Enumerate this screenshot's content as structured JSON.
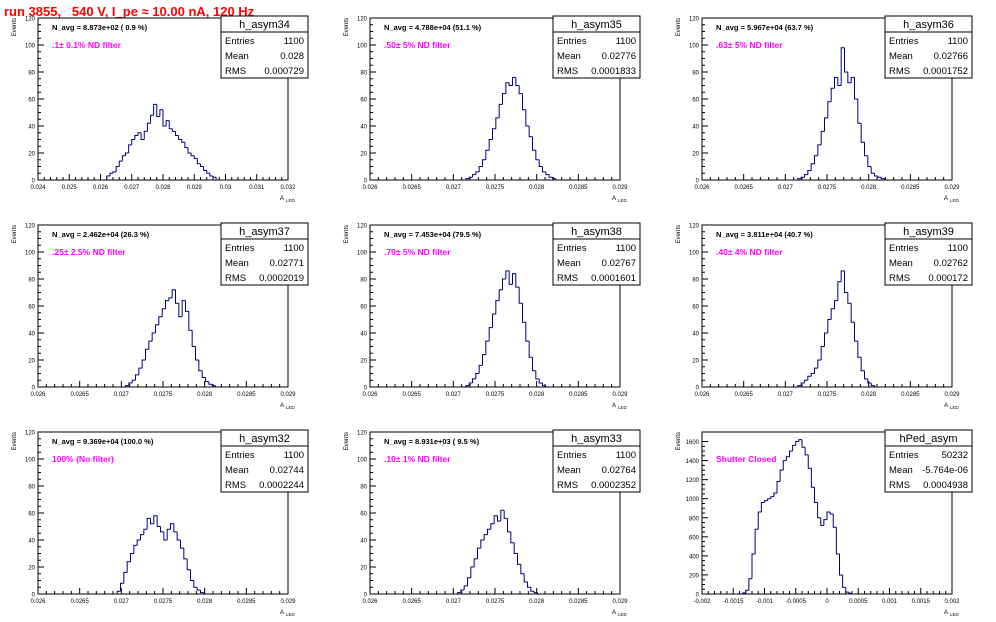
{
  "header": {
    "title": "run 3855,   540 V, I_pe ≈ 10.00 nA, 120 Hz"
  },
  "style": {
    "line_color": "#000080",
    "annotation_color": "#ff00ff",
    "title_color": "#ff0000"
  },
  "chart_data": [
    {
      "type": "bar",
      "histogram": "h_asym34",
      "title": "h_asym34",
      "navg": "N_avg = 8.873e+02 ( 0.9 %)",
      "filter_label": ".1± 0.1% ND filter",
      "stats": {
        "entries": "1100",
        "mean": "0.028",
        "rms": "0.000729"
      },
      "xlabel": "A",
      "xlabel_sub": "LED",
      "ylabel": "Events",
      "xlim": [
        0.024,
        0.032
      ],
      "ylim": [
        0,
        120
      ],
      "xticks": [
        0.024,
        0.025,
        0.026,
        0.027,
        0.028,
        0.029,
        0.03,
        0.031,
        0.032
      ],
      "xtick_labels": [
        "0.024",
        "0.025",
        "0.026",
        "0.027",
        "0.028",
        "0.029",
        "0.03",
        "0.031",
        "0.032"
      ],
      "yticks": [
        0,
        20,
        40,
        60,
        80,
        100,
        120
      ],
      "ytick_labels": [
        "0",
        "20",
        "40",
        "60",
        "80",
        "100",
        "120"
      ],
      "bin_start": 0.0262,
      "bin_width": 0.0001,
      "values": [
        3,
        5,
        6,
        10,
        14,
        18,
        20,
        26,
        30,
        33,
        35,
        30,
        36,
        42,
        48,
        56,
        47,
        52,
        40,
        44,
        38,
        36,
        33,
        30,
        28,
        24,
        20,
        18,
        16,
        12,
        10,
        7,
        5,
        3,
        2
      ]
    },
    {
      "type": "bar",
      "histogram": "h_asym35",
      "title": "h_asym35",
      "navg": "N_avg = 4.788e+04 (51.1 %)",
      "filter_label": ".50± 5% ND filter",
      "stats": {
        "entries": "1100",
        "mean": "0.02776",
        "rms": "0.0001833"
      },
      "xlabel": "A",
      "xlabel_sub": "LED",
      "ylabel": "Events",
      "xlim": [
        0.026,
        0.029
      ],
      "ylim": [
        0,
        120
      ],
      "xticks": [
        0.026,
        0.0265,
        0.027,
        0.0275,
        0.028,
        0.0285,
        0.029
      ],
      "xtick_labels": [
        "0.026",
        "0.0265",
        "0.027",
        "0.0275",
        "0.028",
        "0.0285",
        "0.029"
      ],
      "yticks": [
        0,
        20,
        40,
        60,
        80,
        100,
        120
      ],
      "ytick_labels": [
        "0",
        "20",
        "40",
        "60",
        "80",
        "100",
        "120"
      ],
      "bin_start": 0.02715,
      "bin_width": 4e-05,
      "values": [
        1,
        2,
        4,
        6,
        10,
        15,
        22,
        30,
        38,
        46,
        56,
        64,
        72,
        70,
        76,
        70,
        64,
        52,
        40,
        32,
        22,
        15,
        10,
        6,
        4,
        2,
        1
      ]
    },
    {
      "type": "bar",
      "histogram": "h_asym36",
      "title": "h_asym36",
      "navg": "N_avg = 5.967e+04 (63.7 %)",
      "filter_label": ".63± 5% ND filter",
      "stats": {
        "entries": "1100",
        "mean": "0.02766",
        "rms": "0.0001752"
      },
      "xlabel": "A",
      "xlabel_sub": "LED",
      "ylabel": "Events",
      "xlim": [
        0.026,
        0.029
      ],
      "ylim": [
        0,
        120
      ],
      "xticks": [
        0.026,
        0.0265,
        0.027,
        0.0275,
        0.028,
        0.0285,
        0.029
      ],
      "xtick_labels": [
        "0.026",
        "0.0265",
        "0.027",
        "0.0275",
        "0.028",
        "0.0285",
        "0.029"
      ],
      "yticks": [
        0,
        20,
        40,
        60,
        80,
        100,
        120
      ],
      "ytick_labels": [
        "0",
        "20",
        "40",
        "60",
        "80",
        "100",
        "120"
      ],
      "bin_start": 0.02715,
      "bin_width": 4e-05,
      "values": [
        1,
        2,
        4,
        7,
        12,
        18,
        26,
        36,
        46,
        58,
        68,
        76,
        70,
        98,
        80,
        72,
        76,
        60,
        42,
        28,
        18,
        10,
        5,
        3,
        2,
        1
      ]
    },
    {
      "type": "bar",
      "histogram": "h_asym37",
      "title": "h_asym37",
      "navg": "N_avg = 2.462e+04 (26.3 %)",
      "filter_label": ".25± 2.5% ND filter",
      "stats": {
        "entries": "1100",
        "mean": "0.02771",
        "rms": "0.0002019"
      },
      "xlabel": "A",
      "xlabel_sub": "LED",
      "ylabel": "Events",
      "xlim": [
        0.026,
        0.029
      ],
      "ylim": [
        0,
        120
      ],
      "xticks": [
        0.026,
        0.0265,
        0.027,
        0.0275,
        0.028,
        0.0285,
        0.029
      ],
      "xtick_labels": [
        "0.026",
        "0.0265",
        "0.027",
        "0.0275",
        "0.028",
        "0.0285",
        "0.029"
      ],
      "yticks": [
        0,
        20,
        40,
        60,
        80,
        100,
        120
      ],
      "ytick_labels": [
        "0",
        "20",
        "40",
        "60",
        "80",
        "100",
        "120"
      ],
      "bin_start": 0.02705,
      "bin_width": 4e-05,
      "values": [
        1,
        3,
        5,
        9,
        14,
        20,
        28,
        34,
        40,
        46,
        52,
        58,
        64,
        66,
        72,
        62,
        52,
        64,
        56,
        42,
        30,
        20,
        12,
        7,
        4,
        2,
        1
      ]
    },
    {
      "type": "bar",
      "histogram": "h_asym38",
      "title": "h_asym38",
      "navg": "N_avg = 7.453e+04 (79.5 %)",
      "filter_label": ".79± 5% ND filter",
      "stats": {
        "entries": "1100",
        "mean": "0.02767",
        "rms": "0.0001601"
      },
      "xlabel": "A",
      "xlabel_sub": "LED",
      "ylabel": "Events",
      "xlim": [
        0.026,
        0.029
      ],
      "ylim": [
        0,
        120
      ],
      "xticks": [
        0.026,
        0.0265,
        0.027,
        0.0275,
        0.028,
        0.0285,
        0.029
      ],
      "xtick_labels": [
        "0.026",
        "0.0265",
        "0.027",
        "0.0275",
        "0.028",
        "0.0285",
        "0.029"
      ],
      "yticks": [
        0,
        20,
        40,
        60,
        80,
        100,
        120
      ],
      "ytick_labels": [
        "0",
        "20",
        "40",
        "60",
        "80",
        "100",
        "120"
      ],
      "bin_start": 0.02715,
      "bin_width": 4e-05,
      "values": [
        1,
        3,
        6,
        10,
        16,
        24,
        34,
        44,
        54,
        64,
        72,
        80,
        86,
        76,
        84,
        74,
        62,
        48,
        34,
        22,
        12,
        6,
        3,
        1
      ]
    },
    {
      "type": "bar",
      "histogram": "h_asym39",
      "title": "h_asym39",
      "navg": "N_avg = 3.811e+04 (40.7 %)",
      "filter_label": ".40± 4% ND filter",
      "stats": {
        "entries": "1100",
        "mean": "0.02762",
        "rms": "0.000172"
      },
      "xlabel": "A",
      "xlabel_sub": "LED",
      "ylabel": "Events",
      "xlim": [
        0.026,
        0.029
      ],
      "ylim": [
        0,
        120
      ],
      "xticks": [
        0.026,
        0.0265,
        0.027,
        0.0275,
        0.028,
        0.0285,
        0.029
      ],
      "xtick_labels": [
        "0.026",
        "0.0265",
        "0.027",
        "0.0275",
        "0.028",
        "0.0285",
        "0.029"
      ],
      "yticks": [
        0,
        20,
        40,
        60,
        80,
        100,
        120
      ],
      "ytick_labels": [
        "0",
        "20",
        "40",
        "60",
        "80",
        "100",
        "120"
      ],
      "bin_start": 0.02715,
      "bin_width": 4e-05,
      "values": [
        1,
        3,
        5,
        8,
        10,
        14,
        20,
        30,
        40,
        50,
        58,
        64,
        78,
        86,
        70,
        62,
        48,
        34,
        22,
        12,
        6,
        3,
        1
      ]
    },
    {
      "type": "bar",
      "histogram": "h_asym32",
      "title": "h_asym32",
      "navg": "N_avg = 9.369e+04 (100.0 %)",
      "filter_label": "100% (No filter)",
      "stats": {
        "entries": "1100",
        "mean": "0.02744",
        "rms": "0.0002244"
      },
      "xlabel": "A",
      "xlabel_sub": "LED",
      "ylabel": "Events",
      "xlim": [
        0.026,
        0.029
      ],
      "ylim": [
        0,
        120
      ],
      "xticks": [
        0.026,
        0.0265,
        0.027,
        0.0275,
        0.028,
        0.0285,
        0.029
      ],
      "xtick_labels": [
        "0.026",
        "0.0265",
        "0.027",
        "0.0275",
        "0.028",
        "0.0285",
        "0.029"
      ],
      "yticks": [
        0,
        20,
        40,
        60,
        80,
        100,
        120
      ],
      "ytick_labels": [
        "0",
        "20",
        "40",
        "60",
        "80",
        "100",
        "120"
      ],
      "bin_start": 0.02695,
      "bin_width": 4e-05,
      "values": [
        2,
        8,
        16,
        24,
        30,
        36,
        40,
        44,
        48,
        56,
        52,
        58,
        50,
        46,
        40,
        48,
        52,
        46,
        40,
        34,
        26,
        18,
        10,
        5,
        3,
        1
      ]
    },
    {
      "type": "bar",
      "histogram": "h_asym33",
      "title": "h_asym33",
      "navg": "N_avg = 8.931e+03 ( 9.5 %)",
      "filter_label": ".10± 1% ND filter",
      "stats": {
        "entries": "1100",
        "mean": "0.02764",
        "rms": "0.0002352"
      },
      "xlabel": "A",
      "xlabel_sub": "LED",
      "ylabel": "Events",
      "xlim": [
        0.026,
        0.029
      ],
      "ylim": [
        0,
        120
      ],
      "xticks": [
        0.026,
        0.0265,
        0.027,
        0.0275,
        0.028,
        0.0285,
        0.029
      ],
      "xtick_labels": [
        "0.026",
        "0.0265",
        "0.027",
        "0.0275",
        "0.028",
        "0.0285",
        "0.029"
      ],
      "yticks": [
        0,
        20,
        40,
        60,
        80,
        100,
        120
      ],
      "ytick_labels": [
        "0",
        "20",
        "40",
        "60",
        "80",
        "100",
        "120"
      ],
      "bin_start": 0.02705,
      "bin_width": 4e-05,
      "values": [
        1,
        3,
        6,
        12,
        20,
        26,
        34,
        40,
        44,
        48,
        52,
        58,
        54,
        62,
        56,
        46,
        38,
        30,
        22,
        15,
        9,
        5,
        2,
        1
      ]
    },
    {
      "type": "bar",
      "histogram": "hPed_asym",
      "title": "hPed_asym",
      "navg": "",
      "filter_label": "Shutter Closed",
      "stats": {
        "entries": "50232",
        "mean": "-5.764e-06",
        "rms": "0.0004938"
      },
      "xlabel": "A",
      "xlabel_sub": "LED",
      "ylabel": "Events",
      "xlim": [
        -0.002,
        0.002
      ],
      "ylim": [
        0,
        1700
      ],
      "xticks": [
        -0.002,
        -0.0015,
        -0.001,
        -0.0005,
        0,
        0.0005,
        0.001,
        0.0015,
        0.002
      ],
      "xtick_labels": [
        "-0.002",
        "-0.0015",
        "-0.001",
        "-0.0005",
        "0",
        "0.0005",
        "0.001",
        "0.0015",
        "0.002"
      ],
      "yticks": [
        0,
        200,
        400,
        600,
        800,
        1000,
        1200,
        1400,
        1600
      ],
      "ytick_labels": [
        "0",
        "200",
        "400",
        "600",
        "800",
        "1000",
        "1200",
        "1400",
        "1600"
      ],
      "bin_start": -0.00135,
      "bin_width": 5e-05,
      "values": [
        10,
        40,
        160,
        420,
        680,
        860,
        960,
        980,
        1000,
        1020,
        1060,
        1180,
        1300,
        1400,
        1440,
        1500,
        1560,
        1600,
        1620,
        1540,
        1460,
        1320,
        1120,
        960,
        800,
        720,
        780,
        860,
        840,
        700,
        420,
        200,
        70,
        20,
        8
      ]
    }
  ]
}
